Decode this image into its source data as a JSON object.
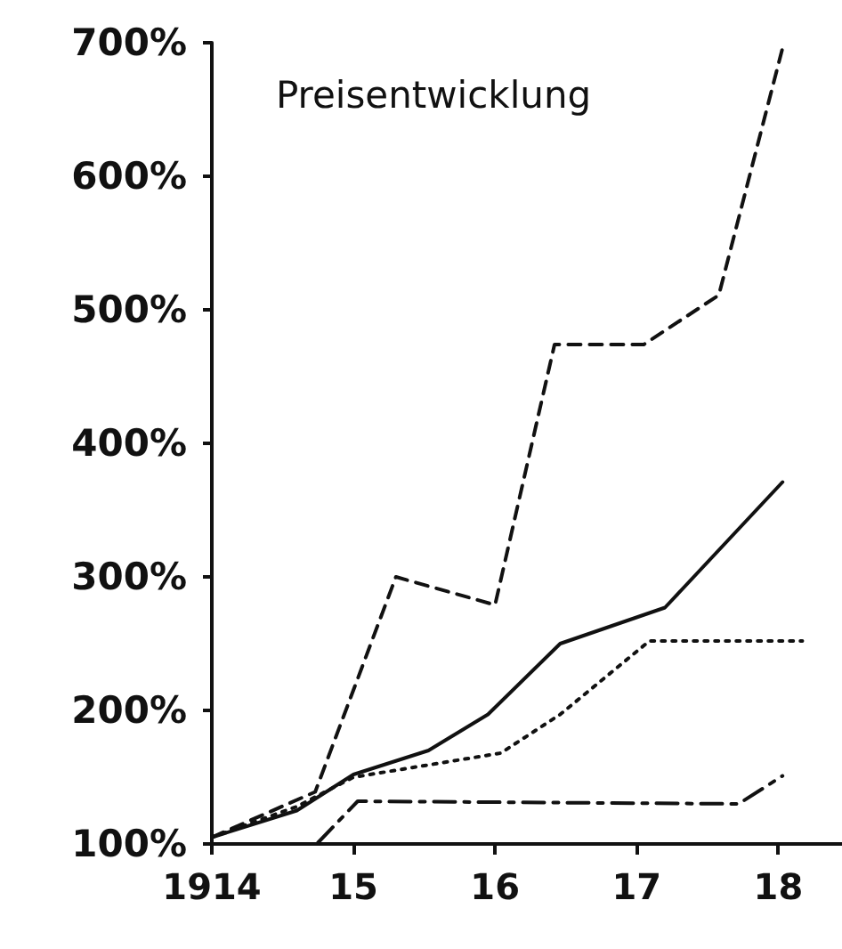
{
  "chart_data": {
    "type": "line",
    "title": "Preisentwicklung",
    "xlim": [
      1914,
      1918.45
    ],
    "xticks": [
      {
        "value": 1914,
        "label": "1914"
      },
      {
        "value": 1915,
        "label": "15"
      },
      {
        "value": 1916,
        "label": "16"
      },
      {
        "value": 1917,
        "label": "17"
      },
      {
        "value": 1918,
        "label": "18"
      }
    ],
    "ylim": [
      100,
      700
    ],
    "yticks": [
      {
        "value": 100,
        "label": "100%"
      },
      {
        "value": 200,
        "label": "200%"
      },
      {
        "value": 300,
        "label": "300%"
      },
      {
        "value": 400,
        "label": "400%"
      },
      {
        "value": 500,
        "label": "500%"
      },
      {
        "value": 600,
        "label": "600%"
      },
      {
        "value": 700,
        "label": "700%"
      }
    ],
    "grid": false,
    "marker": "none",
    "series": [
      {
        "color": "#111111",
        "line_style": "dashed",
        "x": [
          1914,
          1914.73,
          1915.3,
          1916.0,
          1916.42,
          1917.05,
          1917.58,
          1918.04
        ],
        "values": [
          105,
          139,
          300,
          279,
          474,
          474,
          511,
          700
        ]
      },
      {
        "color": "#111111",
        "line_style": "solid",
        "x": [
          1914,
          1914.6,
          1915,
          1915.53,
          1915.95,
          1916.46,
          1917.2,
          1918.03
        ],
        "values": [
          105,
          125,
          152,
          170,
          197,
          250,
          277,
          371
        ]
      },
      {
        "color": "#111111",
        "line_style": "dotted",
        "x": [
          1914,
          1914.6,
          1915,
          1916.04,
          1916.46,
          1917.09,
          1918.17
        ],
        "values": [
          105,
          128,
          150,
          168,
          197,
          252,
          252
        ]
      },
      {
        "color": "#111111",
        "line_style": "dashdot",
        "x": [
          1914.75,
          1915.03,
          1917.72,
          1918.03
        ],
        "values": [
          101,
          132,
          130,
          151
        ]
      }
    ]
  }
}
